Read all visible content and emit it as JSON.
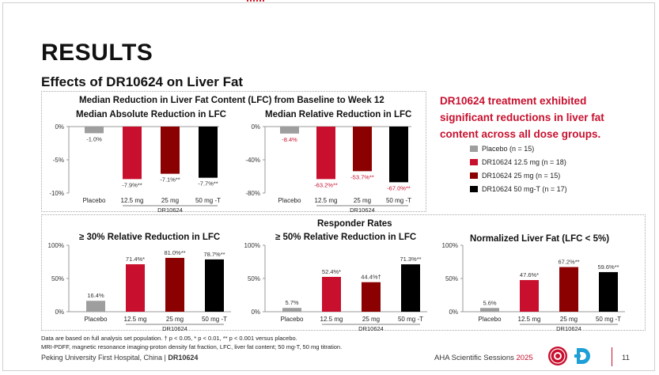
{
  "title": "RESULTS",
  "subtitle": "Effects of DR10624 on Liver Fat",
  "lfc_section": {
    "heading": "Median Reduction in Liver Fat Content (LFC) from Baseline to Week 12"
  },
  "responder_section": {
    "heading": "Responder Rates"
  },
  "callout": "DR10624 treatment exhibited significant reductions in liver fat content across all dose groups.",
  "legend": [
    {
      "label": "Placebo  (n = 15)",
      "color": "#9e9e9e"
    },
    {
      "label": "DR10624 12.5 mg  (n = 18)",
      "color": "#c8102e"
    },
    {
      "label": "DR10624 25 mg  (n = 15)",
      "color": "#8b0000"
    },
    {
      "label": "DR10624 50 mg-T  (n = 17)",
      "color": "#000000"
    }
  ],
  "group_label": "DR10624",
  "categories": [
    "Placebo",
    "12.5 mg",
    "25 mg",
    "50 mg -T"
  ],
  "colors": [
    "#9e9e9e",
    "#c8102e",
    "#8b0000",
    "#000000"
  ],
  "chart_data": [
    {
      "type": "bar",
      "title": "Median Absolute Reduction in LFC",
      "categories": [
        "Placebo",
        "12.5 mg",
        "25 mg",
        "50 mg -T"
      ],
      "values": [
        -1.0,
        -7.9,
        -7.1,
        -7.7
      ],
      "labels": [
        "-1.0%",
        "-7.9%**",
        "-7.1%**",
        "-7.7%**"
      ],
      "label_color": "#333333",
      "ylim": [
        -10,
        0
      ],
      "yticks": [
        0,
        -5,
        -10
      ],
      "ytick_labels": [
        "0%",
        "-5%",
        "-10%"
      ]
    },
    {
      "type": "bar",
      "title": "Median Relative Reduction in LFC",
      "categories": [
        "Placebo",
        "12.5 mg",
        "25 mg",
        "50 mg -T"
      ],
      "values": [
        -8.4,
        -63.2,
        -53.7,
        -67.0
      ],
      "labels": [
        "-8.4%",
        "-63.2%**",
        "-53.7%**",
        "-67.0%**"
      ],
      "label_color": "#c8102e",
      "ylim": [
        -80,
        0
      ],
      "yticks": [
        0,
        -40,
        -80
      ],
      "ytick_labels": [
        "0%",
        "-40%",
        "-80%"
      ]
    },
    {
      "type": "bar",
      "title": "≥ 30% Relative Reduction in LFC",
      "categories": [
        "Placebo",
        "12.5 mg",
        "25 mg",
        "50 mg -T"
      ],
      "values": [
        16.4,
        71.4,
        81.0,
        78.7
      ],
      "labels": [
        "16.4%",
        "71.4%*",
        "81.0%**",
        "78.7%**"
      ],
      "label_color": "#333333",
      "ylim": [
        0,
        100
      ],
      "yticks": [
        0,
        50,
        100
      ],
      "ytick_labels": [
        "0%",
        "50%",
        "100%"
      ]
    },
    {
      "type": "bar",
      "title": "≥ 50% Relative Reduction in LFC",
      "categories": [
        "Placebo",
        "12.5 mg",
        "25 mg",
        "50 mg -T"
      ],
      "values": [
        5.7,
        52.4,
        44.4,
        71.3
      ],
      "labels": [
        "5.7%",
        "52.4%*",
        "44.4%†",
        "71.3%**"
      ],
      "label_color": "#333333",
      "ylim": [
        0,
        100
      ],
      "yticks": [
        0,
        50,
        100
      ],
      "ytick_labels": [
        "0%",
        "50%",
        "100%"
      ]
    },
    {
      "type": "bar",
      "title": "Normalized Liver Fat (LFC < 5%)",
      "categories": [
        "Placebo",
        "12.5 mg",
        "25 mg",
        "50 mg -T"
      ],
      "values": [
        5.6,
        47.6,
        67.2,
        59.6
      ],
      "labels": [
        "5.6%",
        "47.6%*",
        "67.2%**",
        "59.6%**"
      ],
      "label_color": "#333333",
      "ylim": [
        0,
        100
      ],
      "yticks": [
        0,
        50,
        100
      ],
      "ytick_labels": [
        "0%",
        "50%",
        "100%"
      ]
    }
  ],
  "footnote": {
    "line1": "Data are based on full analysis set population. † p < 0.05, * p < 0.01, ** p < 0.001 versus placebo.",
    "line2": "MRI-PDFF, magnetic resonance imaging-proton density fat fraction, LFC, liver fat content; 50 mg-T, 50 mg titration."
  },
  "footer": {
    "institution": "Peking University First Hospital, China | ",
    "drug": "DR10624",
    "conference": "AHA Scientific Sessions ",
    "year": "2025",
    "page": "11"
  }
}
